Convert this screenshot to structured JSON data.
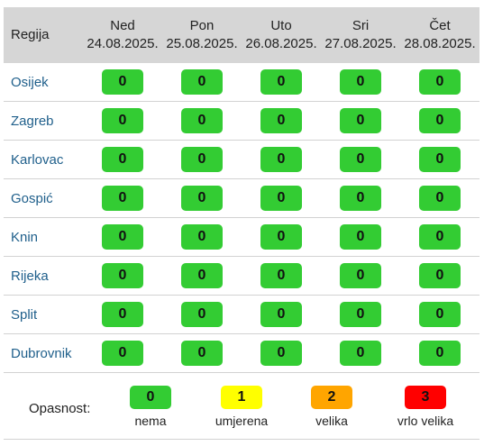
{
  "table": {
    "region_header": "Regija",
    "days": [
      {
        "name": "Ned",
        "date": "24.08.2025."
      },
      {
        "name": "Pon",
        "date": "25.08.2025."
      },
      {
        "name": "Uto",
        "date": "26.08.2025."
      },
      {
        "name": "Sri",
        "date": "27.08.2025."
      },
      {
        "name": "Čet",
        "date": "28.08.2025."
      }
    ],
    "rows": [
      {
        "region": "Osijek",
        "values": [
          "0",
          "0",
          "0",
          "0",
          "0"
        ]
      },
      {
        "region": "Zagreb",
        "values": [
          "0",
          "0",
          "0",
          "0",
          "0"
        ]
      },
      {
        "region": "Karlovac",
        "values": [
          "0",
          "0",
          "0",
          "0",
          "0"
        ]
      },
      {
        "region": "Gospić",
        "values": [
          "0",
          "0",
          "0",
          "0",
          "0"
        ]
      },
      {
        "region": "Knin",
        "values": [
          "0",
          "0",
          "0",
          "0",
          "0"
        ]
      },
      {
        "region": "Rijeka",
        "values": [
          "0",
          "0",
          "0",
          "0",
          "0"
        ]
      },
      {
        "region": "Split",
        "values": [
          "0",
          "0",
          "0",
          "0",
          "0"
        ]
      },
      {
        "region": "Dubrovnik",
        "values": [
          "0",
          "0",
          "0",
          "0",
          "0"
        ]
      }
    ]
  },
  "legend": {
    "title": "Opasnost:",
    "levels": [
      {
        "value": "0",
        "label": "nema",
        "color": "#33cc33"
      },
      {
        "value": "1",
        "label": "umjerena",
        "color": "#ffff00"
      },
      {
        "value": "2",
        "label": "velika",
        "color": "#ffa500"
      },
      {
        "value": "3",
        "label": "vrlo velika",
        "color": "#ff0000"
      }
    ]
  },
  "colors": {
    "header_bg": "#d6d6d6",
    "region_link": "#1f5f8b"
  }
}
